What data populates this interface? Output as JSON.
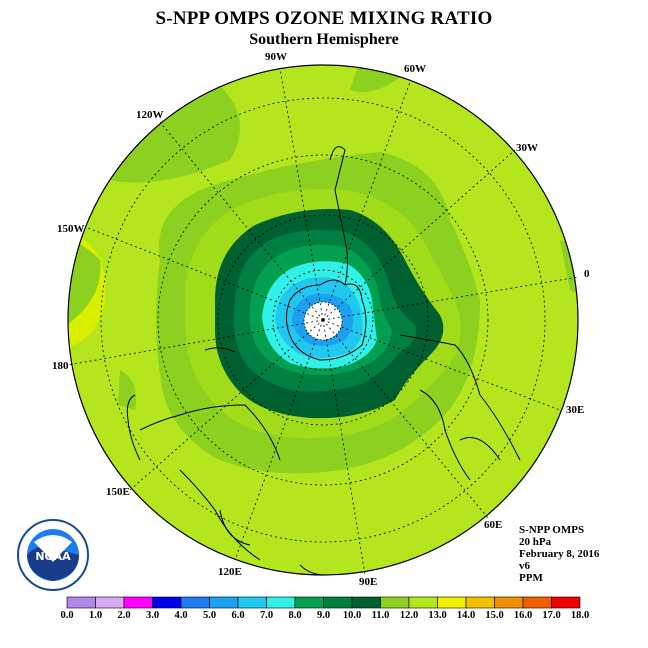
{
  "title": "S-NPP OMPS OZONE MIXING RATIO",
  "subtitle": "Southern Hemisphere",
  "longitude_labels": [
    "90W",
    "60W",
    "30W",
    "0",
    "30E",
    "60E",
    "90E",
    "120E",
    "150E",
    "180",
    "150W",
    "120W"
  ],
  "info": {
    "instrument": "S-NPP OMPS",
    "level": "20 hPa",
    "date": "February 8, 2016",
    "version": "v6",
    "units": "PPM"
  },
  "logo": {
    "name": "noaa-logo",
    "text": "NOAA"
  },
  "colorbar": {
    "ticks": [
      "0.0",
      "1.0",
      "2.0",
      "3.0",
      "4.0",
      "5.0",
      "6.0",
      "7.0",
      "8.0",
      "9.0",
      "10.0",
      "11.0",
      "12.0",
      "13.0",
      "14.0",
      "15.0",
      "16.0",
      "17.0",
      "18.0"
    ],
    "colors": [
      "#b088e8",
      "#d8a8f0",
      "#ff00ff",
      "#0000ee",
      "#1e7cf0",
      "#1ea0f0",
      "#20c8f0",
      "#30f0e8",
      "#00a050",
      "#008040",
      "#006030",
      "#8cd020",
      "#b4e61e",
      "#f0f000",
      "#f0c000",
      "#f09000",
      "#f06000",
      "#f00000",
      "#806040"
    ]
  },
  "map_colors": {
    "pole": "#ffffff",
    "c7": "#30f0e8",
    "c6": "#20c8f0",
    "c5": "#1ea0f0",
    "c8": "#00a050",
    "c9": "#008040",
    "c10": "#006030",
    "c11": "#8cd020",
    "c12": "#b4e61e",
    "c13": "#d8f000"
  }
}
